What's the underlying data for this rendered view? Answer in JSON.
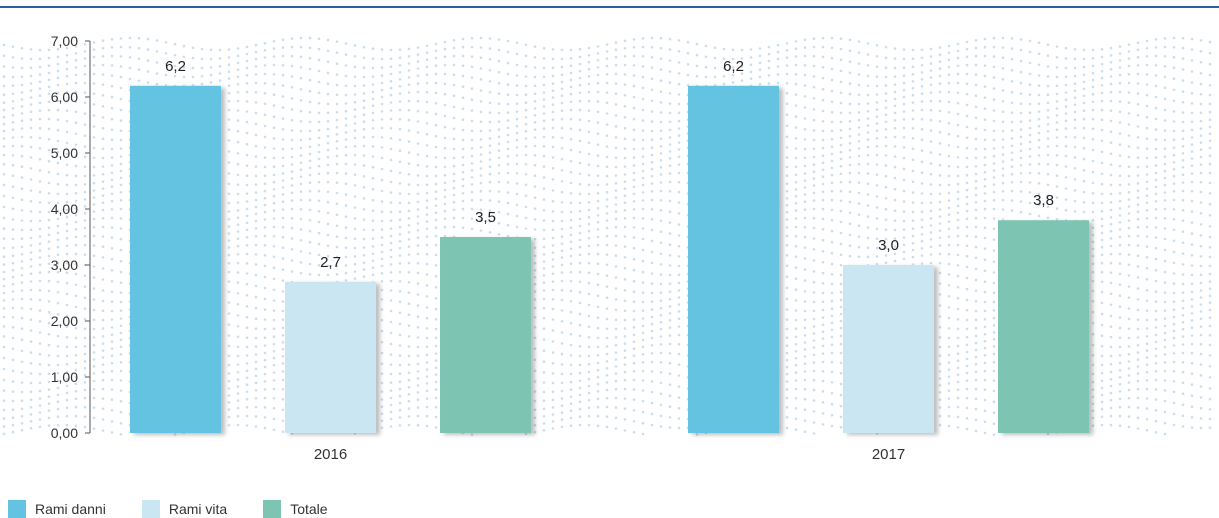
{
  "chart_data": {
    "type": "bar",
    "categories": [
      "2016",
      "2017"
    ],
    "series": [
      {
        "name": "Rami danni",
        "values": [
          6.2,
          6.2
        ],
        "labels": [
          "6,2",
          "6,2"
        ],
        "color": "#64c3e1"
      },
      {
        "name": "Rami vita",
        "values": [
          2.7,
          3.0
        ],
        "labels": [
          "2,7",
          "3,0"
        ],
        "color": "#c9e6f2"
      },
      {
        "name": "Totale",
        "values": [
          3.5,
          3.8
        ],
        "labels": [
          "3,5",
          "3,8"
        ],
        "color": "#7ec4b3"
      }
    ],
    "ylim": [
      0,
      7
    ],
    "yticks": [
      0,
      1,
      2,
      3,
      4,
      5,
      6,
      7
    ],
    "ytick_labels": [
      "0,00",
      "1,00",
      "2,00",
      "3,00",
      "4,00",
      "5,00",
      "6,00",
      "7,00"
    ],
    "title": "",
    "xlabel": "",
    "ylabel": "",
    "legend_position": "bottom-left",
    "grid": false,
    "colors": {
      "top_rule": "#2a5fa0",
      "axis": "#555555",
      "pattern": "#b9d3ea"
    }
  }
}
